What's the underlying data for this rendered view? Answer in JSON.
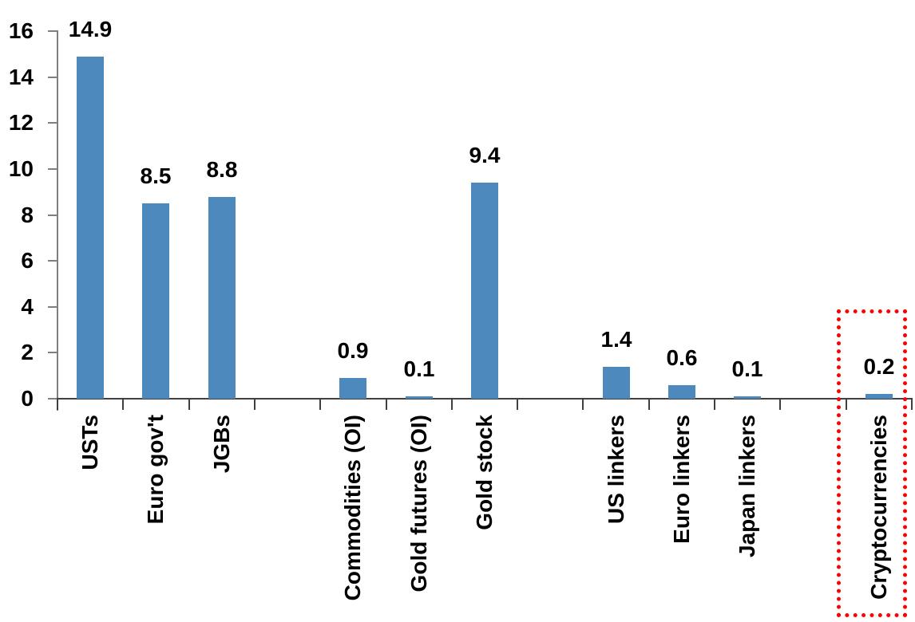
{
  "chart_data": {
    "type": "bar",
    "title": "",
    "xlabel": "",
    "ylabel": "",
    "categories": [
      "USTs",
      "Euro gov't",
      "JGBs",
      "",
      "Commodities (OI)",
      "Gold futures (OI)",
      "Gold stock",
      "",
      "US linkers",
      "Euro linkers",
      "Japan linkers",
      "",
      "Cryptocurrencies"
    ],
    "values": [
      14.9,
      8.5,
      8.8,
      null,
      0.9,
      0.1,
      9.4,
      null,
      1.4,
      0.6,
      0.1,
      null,
      0.2
    ],
    "data_labels": [
      "14.9",
      "8.5",
      "8.8",
      null,
      "0.9",
      "0.1",
      "9.4",
      null,
      "1.4",
      "0.6",
      "0.1",
      null,
      "0.2"
    ],
    "y_ticks": [
      0,
      2,
      4,
      6,
      8,
      10,
      12,
      14,
      16
    ],
    "y_tick_labels": [
      "0",
      "2",
      "4",
      "6",
      "8",
      "10",
      "12",
      "14",
      "16"
    ],
    "ylim": [
      0,
      16
    ],
    "grid": false,
    "legend_position": "none",
    "bar_color": "#4e89bd",
    "text_color": "#000000",
    "annotation": {
      "type": "dotted-box",
      "color": "#ff0000",
      "target_category": "Cryptocurrencies"
    }
  }
}
